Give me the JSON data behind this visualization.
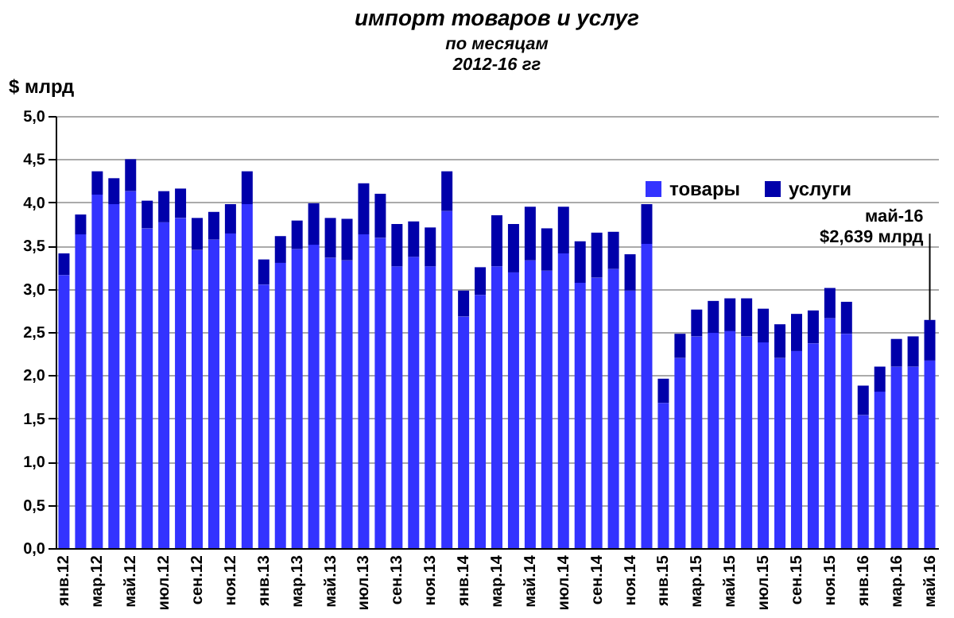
{
  "chart_data": {
    "type": "bar",
    "stacked": true,
    "title": "импорт товаров и услуг",
    "subtitle": "по месяцам\n2012-16 гг",
    "ylabel": "$ млрд",
    "categories": [
      "янв.12",
      null,
      "мар.12",
      null,
      "май.12",
      null,
      "июл.12",
      null,
      "сен.12",
      null,
      "ноя.12",
      null,
      "янв.13",
      null,
      "мар.13",
      null,
      "май.13",
      null,
      "июл.13",
      null,
      "сен.13",
      null,
      "ноя.13",
      null,
      "янв.14",
      null,
      "мар.14",
      null,
      "май.14",
      null,
      "июл.14",
      null,
      "сен.14",
      null,
      "ноя.14",
      null,
      "янв.15",
      null,
      "мар.15",
      null,
      "май.15",
      null,
      "июл.15",
      null,
      "сен.15",
      null,
      "ноя.15",
      null,
      "янв.16",
      null,
      "мар.16",
      null,
      "май.16"
    ],
    "series": [
      {
        "name": "товары",
        "color": "#3333ff",
        "values": [
          3.16,
          3.63,
          4.09,
          3.98,
          4.13,
          3.7,
          3.77,
          3.82,
          3.45,
          3.57,
          3.64,
          3.98,
          3.05,
          3.3,
          3.46,
          3.51,
          3.36,
          3.33,
          3.63,
          3.59,
          3.26,
          3.37,
          3.26,
          3.9,
          2.68,
          2.93,
          3.26,
          3.19,
          3.33,
          3.21,
          3.41,
          3.07,
          3.13,
          3.23,
          2.98,
          3.52,
          1.68,
          2.2,
          2.45,
          2.49,
          2.51,
          2.45,
          2.38,
          2.2,
          2.28,
          2.37,
          2.66,
          2.48,
          1.54,
          1.81,
          2.1,
          2.1,
          2.17
        ]
      },
      {
        "name": "услуги",
        "color": "#0000aa",
        "values": [
          0.25,
          0.23,
          0.27,
          0.3,
          0.37,
          0.32,
          0.36,
          0.34,
          0.37,
          0.32,
          0.34,
          0.38,
          0.29,
          0.31,
          0.33,
          0.48,
          0.46,
          0.48,
          0.59,
          0.51,
          0.49,
          0.41,
          0.45,
          0.46,
          0.3,
          0.32,
          0.59,
          0.56,
          0.62,
          0.49,
          0.54,
          0.48,
          0.52,
          0.43,
          0.42,
          0.46,
          0.28,
          0.28,
          0.31,
          0.37,
          0.38,
          0.44,
          0.39,
          0.39,
          0.43,
          0.38,
          0.35,
          0.37,
          0.34,
          0.29,
          0.32,
          0.35,
          0.47
        ]
      }
    ],
    "ylim": [
      0,
      5
    ],
    "yticks": [
      {
        "value": 0,
        "label": "0,0"
      },
      {
        "value": 0.5,
        "label": "0,5"
      },
      {
        "value": 1,
        "label": "1,0"
      },
      {
        "value": 1.5,
        "label": "1,5"
      },
      {
        "value": 2,
        "label": "2,0"
      },
      {
        "value": 2.5,
        "label": "2,5"
      },
      {
        "value": 3,
        "label": "3,0"
      },
      {
        "value": 3.5,
        "label": "3,5"
      },
      {
        "value": 4,
        "label": "4,0"
      },
      {
        "value": 4.5,
        "label": "4,5"
      },
      {
        "value": 5,
        "label": "5,0"
      }
    ],
    "grid": "y",
    "legend": "top right",
    "annotations": [
      {
        "text": "май-16\n$2,639 млрд",
        "x": "май.16",
        "y": 2.639
      }
    ]
  }
}
